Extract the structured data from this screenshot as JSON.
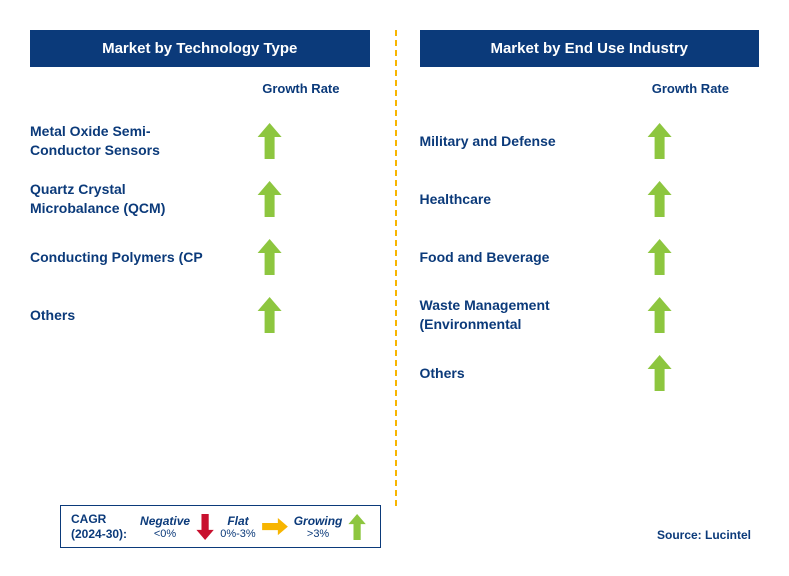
{
  "colors": {
    "header_bg": "#0b3a7a",
    "header_text": "#ffffff",
    "label_text": "#0b3a7a",
    "divider": "#f7b500",
    "arrow_green": "#8dc63f",
    "arrow_red": "#c8102e",
    "arrow_yellow": "#f7b500",
    "legend_border": "#0b3a7a"
  },
  "left_panel": {
    "title": "Market by Technology Type",
    "column_label": "Growth Rate",
    "rows": [
      {
        "label": "Metal Oxide Semi-Conductor Sensors",
        "growth": "growing"
      },
      {
        "label": "Quartz Crystal Microbalance (QCM)",
        "growth": "growing"
      },
      {
        "label": "Conducting Polymers (CP",
        "growth": "growing"
      },
      {
        "label": "Others",
        "growth": "growing"
      }
    ]
  },
  "right_panel": {
    "title": "Market by End Use Industry",
    "column_label": "Growth Rate",
    "rows": [
      {
        "label": "Military and Defense",
        "growth": "growing"
      },
      {
        "label": "Healthcare",
        "growth": "growing"
      },
      {
        "label": "Food and Beverage",
        "growth": "growing"
      },
      {
        "label": "Waste Management (Environmental",
        "growth": "growing"
      },
      {
        "label": "Others",
        "growth": "growing"
      }
    ]
  },
  "legend": {
    "cagr_line1": "CAGR",
    "cagr_line2": "(2024-30):",
    "segments": [
      {
        "name": "Negative",
        "range": "<0%",
        "icon": "down"
      },
      {
        "name": "Flat",
        "range": "0%-3%",
        "icon": "flat"
      },
      {
        "name": "Growing",
        "range": ">3%",
        "icon": "up"
      }
    ]
  },
  "source_label": "Source: Lucintel"
}
